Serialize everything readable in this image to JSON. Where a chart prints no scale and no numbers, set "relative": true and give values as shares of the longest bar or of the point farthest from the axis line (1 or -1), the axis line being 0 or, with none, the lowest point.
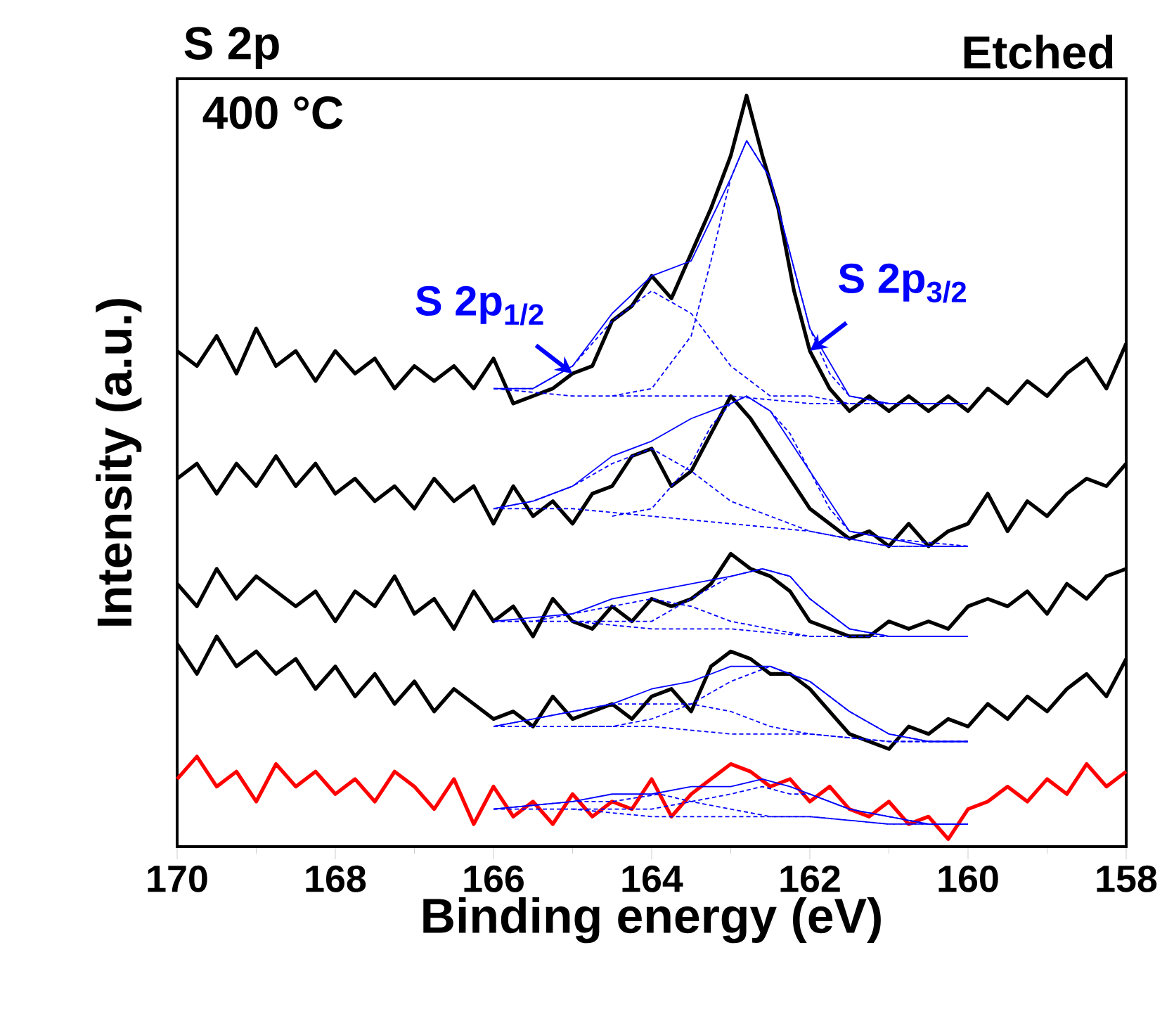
{
  "chart_data": {
    "type": "line",
    "title": "S 2p",
    "xlabel": "Binding energy (eV)",
    "ylabel": "Intensity (a.u.)",
    "relative": true,
    "xlim": [
      170,
      158
    ],
    "xticks": [
      170,
      168,
      166,
      164,
      162,
      160,
      158
    ],
    "grid": false,
    "annotations": [
      "400 °C",
      "Etched",
      {
        "text": "S 2p$_{1/2}$",
        "x": 165,
        "y": 0.63
      },
      {
        "text": "S 2p$_{3/2}$",
        "x": 162,
        "y": 0.66
      }
    ],
    "series": [
      {
        "color": "#000000",
        "line_style": "solid",
        "x": [
          170,
          169.75,
          169.5,
          169.25,
          169,
          168.75,
          168.5,
          168.25,
          168,
          167.75,
          167.5,
          167.25,
          167,
          166.75,
          166.5,
          166.25,
          166,
          165.75,
          165.5,
          165.25,
          165,
          164.75,
          164.5,
          164.25,
          164,
          163.75,
          163.5,
          163.25,
          163,
          162.8,
          162.6,
          162.4,
          162.2,
          162,
          161.75,
          161.5,
          161.25,
          161,
          160.75,
          160.5,
          160.25,
          160,
          159.75,
          159.5,
          159.25,
          159,
          158.75,
          158.5,
          158.25,
          158
        ],
        "values": [
          0.66,
          0.64,
          0.68,
          0.63,
          0.69,
          0.64,
          0.66,
          0.62,
          0.66,
          0.63,
          0.65,
          0.61,
          0.64,
          0.62,
          0.64,
          0.61,
          0.65,
          0.59,
          0.6,
          0.61,
          0.63,
          0.64,
          0.7,
          0.72,
          0.76,
          0.73,
          0.79,
          0.85,
          0.92,
          1.0,
          0.92,
          0.85,
          0.74,
          0.66,
          0.61,
          0.58,
          0.6,
          0.58,
          0.6,
          0.58,
          0.6,
          0.58,
          0.61,
          0.59,
          0.62,
          0.6,
          0.63,
          0.65,
          0.61,
          0.67
        ]
      },
      {
        "color": "#000000",
        "line_style": "solid",
        "x": [
          170,
          169.75,
          169.5,
          169.25,
          169,
          168.75,
          168.5,
          168.25,
          168,
          167.75,
          167.5,
          167.25,
          167,
          166.75,
          166.5,
          166.25,
          166,
          165.75,
          165.5,
          165.25,
          165,
          164.75,
          164.5,
          164.25,
          164,
          163.75,
          163.5,
          163.25,
          163,
          162.75,
          162.5,
          162.25,
          162,
          161.75,
          161.5,
          161.25,
          161,
          160.75,
          160.5,
          160.25,
          160,
          159.75,
          159.5,
          159.25,
          159,
          158.75,
          158.5,
          158.25,
          158
        ],
        "values": [
          0.49,
          0.51,
          0.47,
          0.51,
          0.48,
          0.52,
          0.48,
          0.51,
          0.47,
          0.49,
          0.46,
          0.48,
          0.45,
          0.49,
          0.46,
          0.48,
          0.43,
          0.48,
          0.44,
          0.46,
          0.43,
          0.47,
          0.48,
          0.52,
          0.53,
          0.48,
          0.5,
          0.55,
          0.6,
          0.57,
          0.53,
          0.49,
          0.45,
          0.43,
          0.41,
          0.42,
          0.4,
          0.43,
          0.4,
          0.42,
          0.43,
          0.47,
          0.42,
          0.46,
          0.44,
          0.47,
          0.49,
          0.48,
          0.51
        ]
      },
      {
        "color": "#000000",
        "line_style": "solid",
        "x": [
          170,
          169.75,
          169.5,
          169.25,
          169,
          168.75,
          168.5,
          168.25,
          168,
          167.75,
          167.5,
          167.25,
          167,
          166.75,
          166.5,
          166.25,
          166,
          165.75,
          165.5,
          165.25,
          165,
          164.75,
          164.5,
          164.25,
          164,
          163.75,
          163.5,
          163.25,
          163,
          162.75,
          162.5,
          162.25,
          162,
          161.75,
          161.5,
          161.25,
          161,
          160.75,
          160.5,
          160.25,
          160,
          159.75,
          159.5,
          159.25,
          159,
          158.75,
          158.5,
          158.25,
          158
        ],
        "values": [
          0.35,
          0.32,
          0.37,
          0.33,
          0.36,
          0.34,
          0.32,
          0.34,
          0.3,
          0.34,
          0.32,
          0.36,
          0.31,
          0.33,
          0.29,
          0.34,
          0.3,
          0.32,
          0.28,
          0.33,
          0.3,
          0.29,
          0.32,
          0.3,
          0.33,
          0.32,
          0.33,
          0.35,
          0.39,
          0.37,
          0.36,
          0.34,
          0.3,
          0.29,
          0.28,
          0.28,
          0.3,
          0.29,
          0.3,
          0.29,
          0.32,
          0.33,
          0.32,
          0.34,
          0.31,
          0.35,
          0.33,
          0.36,
          0.37
        ]
      },
      {
        "color": "#000000",
        "line_style": "solid",
        "x": [
          170,
          169.75,
          169.5,
          169.25,
          169,
          168.75,
          168.5,
          168.25,
          168,
          167.75,
          167.5,
          167.25,
          167,
          166.75,
          166.5,
          166.25,
          166,
          165.75,
          165.5,
          165.25,
          165,
          164.75,
          164.5,
          164.25,
          164,
          163.75,
          163.5,
          163.25,
          163,
          162.75,
          162.5,
          162.25,
          162,
          161.75,
          161.5,
          161.25,
          161,
          160.75,
          160.5,
          160.25,
          160,
          159.75,
          159.5,
          159.25,
          159,
          158.75,
          158.5,
          158.25,
          158
        ],
        "values": [
          0.27,
          0.23,
          0.28,
          0.24,
          0.26,
          0.23,
          0.25,
          0.21,
          0.24,
          0.2,
          0.23,
          0.19,
          0.22,
          0.18,
          0.21,
          0.19,
          0.17,
          0.18,
          0.16,
          0.2,
          0.17,
          0.18,
          0.19,
          0.17,
          0.2,
          0.21,
          0.18,
          0.24,
          0.26,
          0.25,
          0.23,
          0.23,
          0.21,
          0.18,
          0.15,
          0.14,
          0.13,
          0.16,
          0.15,
          0.17,
          0.16,
          0.19,
          0.17,
          0.2,
          0.18,
          0.21,
          0.23,
          0.2,
          0.25
        ]
      },
      {
        "color": "#ff0000",
        "line_style": "solid",
        "x": [
          170,
          169.75,
          169.5,
          169.25,
          169,
          168.75,
          168.5,
          168.25,
          168,
          167.75,
          167.5,
          167.25,
          167,
          166.75,
          166.5,
          166.25,
          166,
          165.75,
          165.5,
          165.25,
          165,
          164.75,
          164.5,
          164.25,
          164,
          163.75,
          163.5,
          163.25,
          163,
          162.75,
          162.5,
          162.25,
          162,
          161.75,
          161.5,
          161.25,
          161,
          160.75,
          160.5,
          160.25,
          160,
          159.75,
          159.5,
          159.25,
          159,
          158.75,
          158.5,
          158.25,
          158
        ],
        "values": [
          0.09,
          0.12,
          0.08,
          0.1,
          0.06,
          0.11,
          0.08,
          0.1,
          0.07,
          0.09,
          0.06,
          0.1,
          0.08,
          0.05,
          0.09,
          0.03,
          0.08,
          0.04,
          0.06,
          0.03,
          0.07,
          0.04,
          0.06,
          0.05,
          0.09,
          0.04,
          0.07,
          0.09,
          0.11,
          0.1,
          0.08,
          0.09,
          0.06,
          0.08,
          0.05,
          0.04,
          0.06,
          0.03,
          0.04,
          0.01,
          0.05,
          0.06,
          0.08,
          0.06,
          0.09,
          0.07,
          0.11,
          0.08,
          0.1
        ]
      },
      {
        "color": "#0000ff",
        "line_style": "dashed",
        "x": [
          166,
          165,
          164,
          163,
          162,
          161,
          160
        ],
        "values": [
          0.61,
          0.6,
          0.6,
          0.6,
          0.59,
          0.59,
          0.59
        ]
      },
      {
        "color": "#0000ff",
        "line_style": "dashed",
        "x": [
          166,
          165.5,
          165,
          164.5,
          164,
          163.5,
          163,
          162.5,
          162,
          161.5,
          161,
          160
        ],
        "values": [
          0.61,
          0.61,
          0.64,
          0.7,
          0.74,
          0.71,
          0.64,
          0.6,
          0.6,
          0.59,
          0.59,
          0.59
        ]
      },
      {
        "color": "#0000ff",
        "line_style": "dashed",
        "x": [
          164.5,
          164,
          163.5,
          163.25,
          163,
          162.8,
          162.5,
          162.25,
          162,
          161.75,
          161.5,
          161,
          160
        ],
        "values": [
          0.6,
          0.61,
          0.68,
          0.78,
          0.89,
          0.94,
          0.89,
          0.79,
          0.69,
          0.63,
          0.6,
          0.59,
          0.59
        ]
      },
      {
        "color": "#0000ff",
        "line_style": "solid",
        "x": [
          166,
          165.5,
          165,
          164.5,
          164,
          163.5,
          163,
          162.8,
          162.5,
          162,
          161.5,
          161,
          160.5,
          160
        ],
        "values": [
          0.61,
          0.61,
          0.64,
          0.71,
          0.76,
          0.78,
          0.89,
          0.94,
          0.89,
          0.69,
          0.6,
          0.59,
          0.59,
          0.59
        ]
      },
      {
        "color": "#0000ff",
        "line_style": "dashed",
        "x": [
          166,
          165,
          164,
          163,
          162,
          161,
          160
        ],
        "values": [
          0.45,
          0.45,
          0.44,
          0.43,
          0.42,
          0.4,
          0.4
        ]
      },
      {
        "color": "#0000ff",
        "line_style": "dashed",
        "x": [
          166,
          165.5,
          165,
          164.5,
          164,
          163.5,
          163,
          162.5,
          162,
          161,
          160
        ],
        "values": [
          0.45,
          0.46,
          0.48,
          0.51,
          0.53,
          0.5,
          0.46,
          0.44,
          0.42,
          0.4,
          0.4
        ]
      },
      {
        "color": "#0000ff",
        "line_style": "dashed",
        "x": [
          164.5,
          164,
          163.5,
          163.25,
          163,
          162.8,
          162.5,
          162.25,
          162,
          161.75,
          161.5,
          161,
          160
        ],
        "values": [
          0.44,
          0.45,
          0.51,
          0.56,
          0.59,
          0.6,
          0.58,
          0.55,
          0.5,
          0.45,
          0.42,
          0.41,
          0.4
        ]
      },
      {
        "color": "#0000ff",
        "line_style": "solid",
        "x": [
          166,
          165.5,
          165,
          164.5,
          164,
          163.5,
          163,
          162.8,
          162.5,
          162,
          161.5,
          161,
          160.5,
          160
        ],
        "values": [
          0.45,
          0.46,
          0.48,
          0.52,
          0.54,
          0.57,
          0.59,
          0.6,
          0.58,
          0.5,
          0.42,
          0.41,
          0.4,
          0.4
        ]
      },
      {
        "color": "#0000ff",
        "line_style": "dashed",
        "x": [
          166,
          165,
          164,
          163,
          162,
          161,
          160
        ],
        "values": [
          0.3,
          0.3,
          0.29,
          0.29,
          0.28,
          0.28,
          0.28
        ]
      },
      {
        "color": "#0000ff",
        "line_style": "dashed",
        "x": [
          166,
          165.5,
          165,
          164.5,
          164,
          163.5,
          163,
          162.5,
          162,
          161,
          160
        ],
        "values": [
          0.3,
          0.3,
          0.31,
          0.32,
          0.33,
          0.32,
          0.3,
          0.29,
          0.28,
          0.28,
          0.28
        ]
      },
      {
        "color": "#0000ff",
        "line_style": "dashed",
        "x": [
          165,
          164.5,
          164,
          163.5,
          163,
          162.6,
          162.25,
          162,
          161.5,
          161,
          160
        ],
        "values": [
          0.3,
          0.3,
          0.3,
          0.33,
          0.36,
          0.37,
          0.36,
          0.33,
          0.29,
          0.28,
          0.28
        ]
      },
      {
        "color": "#0000ff",
        "line_style": "solid",
        "x": [
          166,
          165,
          164.5,
          164,
          163.5,
          163,
          162.6,
          162.25,
          162,
          161.5,
          161,
          160.5,
          160
        ],
        "values": [
          0.3,
          0.31,
          0.33,
          0.34,
          0.35,
          0.36,
          0.37,
          0.36,
          0.33,
          0.29,
          0.28,
          0.28,
          0.28
        ]
      },
      {
        "color": "#0000ff",
        "line_style": "dashed",
        "x": [
          166,
          165,
          164,
          163,
          162,
          161,
          160
        ],
        "values": [
          0.16,
          0.16,
          0.16,
          0.15,
          0.15,
          0.14,
          0.14
        ]
      },
      {
        "color": "#0000ff",
        "line_style": "dashed",
        "x": [
          166,
          165.5,
          165,
          164.5,
          163.9,
          163.5,
          163,
          162.5,
          162,
          161,
          160
        ],
        "values": [
          0.16,
          0.17,
          0.18,
          0.19,
          0.19,
          0.19,
          0.18,
          0.16,
          0.15,
          0.14,
          0.14
        ]
      },
      {
        "color": "#0000ff",
        "line_style": "dashed",
        "x": [
          165,
          164.5,
          164,
          163.5,
          163,
          162.5,
          162,
          161.75,
          161.5,
          161,
          160.5,
          160
        ],
        "values": [
          0.16,
          0.16,
          0.17,
          0.19,
          0.22,
          0.24,
          0.22,
          0.2,
          0.18,
          0.15,
          0.14,
          0.14
        ]
      },
      {
        "color": "#0000ff",
        "line_style": "solid",
        "x": [
          166,
          165,
          164.5,
          164,
          163.5,
          163,
          162.5,
          162,
          161.5,
          161,
          160.5,
          160
        ],
        "values": [
          0.16,
          0.18,
          0.19,
          0.21,
          0.22,
          0.24,
          0.24,
          0.22,
          0.18,
          0.15,
          0.14,
          0.14
        ]
      },
      {
        "color": "#0000ff",
        "line_style": "dashed",
        "x": [
          166,
          165,
          164,
          163,
          162,
          161,
          160
        ],
        "values": [
          0.05,
          0.05,
          0.04,
          0.04,
          0.04,
          0.03,
          0.03
        ]
      },
      {
        "color": "#0000ff",
        "line_style": "dashed",
        "x": [
          166,
          165,
          164.5,
          163.9,
          163.5,
          163,
          162.5,
          162,
          161,
          160
        ],
        "values": [
          0.05,
          0.06,
          0.06,
          0.07,
          0.06,
          0.05,
          0.04,
          0.04,
          0.03,
          0.03
        ]
      },
      {
        "color": "#0000ff",
        "line_style": "dashed",
        "x": [
          165,
          164.5,
          164,
          163.5,
          163,
          162.6,
          162.25,
          162,
          161.5,
          161,
          160.5,
          160
        ],
        "values": [
          0.05,
          0.05,
          0.05,
          0.06,
          0.07,
          0.08,
          0.07,
          0.07,
          0.05,
          0.04,
          0.03,
          0.03
        ]
      },
      {
        "color": "#0000ff",
        "line_style": "solid",
        "x": [
          166,
          165,
          164.5,
          164,
          163.5,
          163,
          162.6,
          162.25,
          162,
          161.5,
          161,
          160.5,
          160
        ],
        "values": [
          0.05,
          0.06,
          0.07,
          0.07,
          0.08,
          0.08,
          0.09,
          0.08,
          0.07,
          0.05,
          0.04,
          0.03,
          0.03
        ]
      }
    ]
  }
}
